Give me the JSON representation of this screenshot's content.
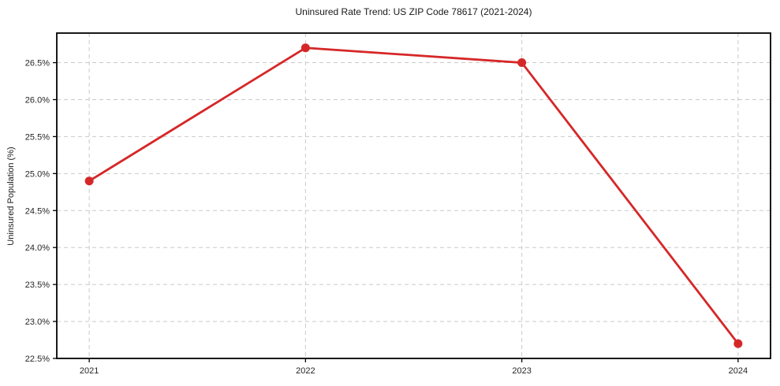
{
  "figure": {
    "background": "#ffffff"
  },
  "chart_data": {
    "type": "line",
    "title": "Uninsured Rate Trend: US ZIP Code 78617 (2021-2024)",
    "xlabel": "",
    "ylabel": "Uninsured Population (%)",
    "x": [
      2021,
      2022,
      2023,
      2024
    ],
    "series": [
      {
        "name": "uninsured-rate",
        "values": [
          24.9,
          26.7,
          26.5,
          22.7
        ],
        "color": "#d62728",
        "marker": "circle"
      }
    ],
    "xticks": {
      "values": [
        2021,
        2022,
        2023,
        2024
      ],
      "labels": [
        "2021",
        "2022",
        "2023",
        "2024"
      ]
    },
    "yticks": {
      "values": [
        22.5,
        23.0,
        23.5,
        24.0,
        24.5,
        25.0,
        25.5,
        26.0,
        26.5
      ],
      "labels": [
        "22.5%",
        "23.0%",
        "23.5%",
        "24.0%",
        "24.5%",
        "25.0%",
        "25.5%",
        "26.0%",
        "26.5%"
      ]
    },
    "xlim": [
      2020.85,
      2024.15
    ],
    "ylim": [
      22.5,
      26.9
    ],
    "grid": true,
    "grid_style": "dashed",
    "legend": false,
    "colors": {
      "line": "#d62728",
      "grid": "#c9c9c9",
      "axis": "#000000",
      "text": "#262626",
      "plot_background": "#ffffff"
    }
  }
}
